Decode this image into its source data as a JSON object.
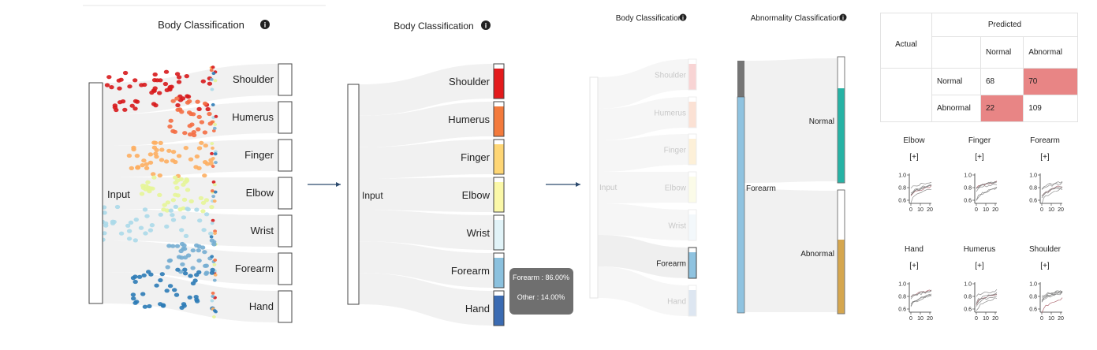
{
  "panel1": {
    "title": "Body Classification",
    "input_label": "Input",
    "categories": [
      "Shoulder",
      "Humerus",
      "Finger",
      "Elbow",
      "Wrist",
      "Forearm",
      "Hand"
    ],
    "colors": [
      "#d7191c",
      "#f46d43",
      "#fdae61",
      "#e6f598",
      "#abd9e9",
      "#74add1",
      "#2c7bb6"
    ]
  },
  "panel2": {
    "title": "Body Classification",
    "input_label": "Input",
    "categories": [
      "Shoulder",
      "Humerus",
      "Finger",
      "Elbow",
      "Wrist",
      "Forearm",
      "Hand"
    ],
    "fill_colors": [
      "#e31a1c",
      "#f37a3c",
      "#fed675",
      "#fbf8a8",
      "#e1f3f8",
      "#8bc1de",
      "#3b6bb2"
    ],
    "tooltip": {
      "line1": "Forearm : 86.00%",
      "line2": "Other : 14.00%"
    }
  },
  "panel3": {
    "title": "Body Classification",
    "input_label": "Input",
    "categories": [
      "Shoulder",
      "Humerus",
      "Finger",
      "Elbow",
      "Wrist",
      "Forearm",
      "Hand"
    ],
    "selected": "Forearm"
  },
  "panel4": {
    "title": "Abnormality Classification",
    "source_label": "Forearm",
    "targets": [
      "Normal",
      "Abnormal"
    ],
    "normal_color": "#26b3a5",
    "abnormal_color": "#d5a64e",
    "forearm_color": "#8fc3e0"
  },
  "confusion": {
    "predicted_label": "Predicted",
    "actual_label": "Actual",
    "col_headers": [
      "Normal",
      "Abnormal"
    ],
    "rows": [
      {
        "label": "Normal",
        "values": [
          "68",
          "70"
        ]
      },
      {
        "label": "Abnormal",
        "values": [
          "22",
          "109"
        ]
      }
    ],
    "highlight_color": "#e88585"
  },
  "small_charts": {
    "expand_label": "[+]",
    "yticks": [
      "1.0",
      "0.8",
      "0.6"
    ],
    "xticks": [
      "0",
      "10",
      "20"
    ],
    "panels": [
      "Elbow",
      "Finger",
      "Forearm",
      "Hand",
      "Humerus",
      "Shoulder"
    ]
  }
}
